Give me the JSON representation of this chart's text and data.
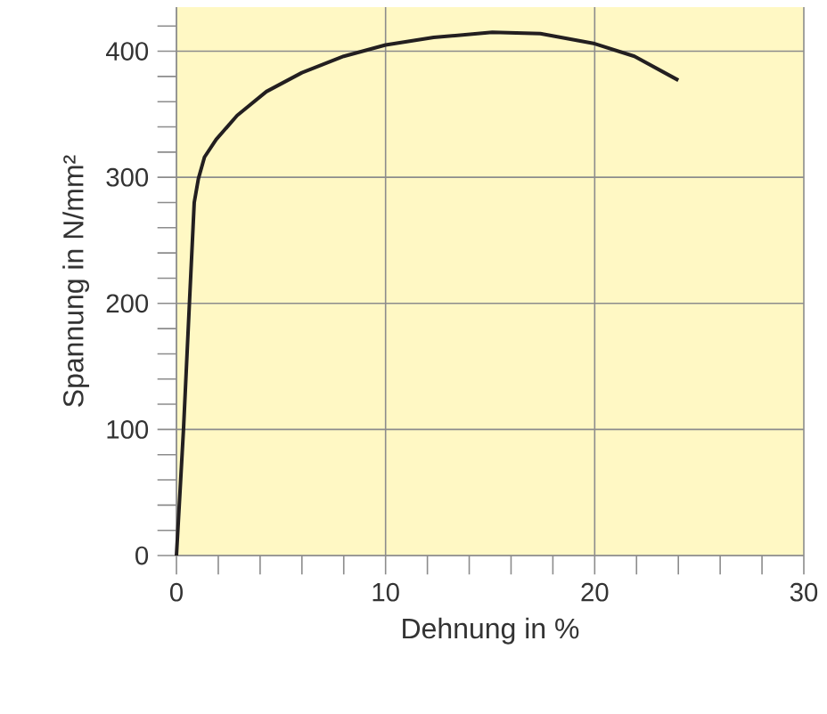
{
  "chart_data": {
    "type": "line",
    "xlabel": "Dehnung in %",
    "ylabel": "Spannung in N/mm²",
    "x": [
      0,
      0.34,
      0.62,
      0.85,
      1.05,
      1.34,
      1.9,
      2.9,
      4.3,
      6.0,
      8.0,
      10,
      12.3,
      15.1,
      17.4,
      20,
      21.9,
      24
    ],
    "series": [
      {
        "color": "#231f20",
        "values": [
          0,
          101,
          200,
          280,
          299,
          316,
          330,
          349,
          368,
          383,
          396,
          405,
          411,
          415,
          414,
          406,
          396,
          377
        ]
      }
    ],
    "xlim": [
      0,
      30
    ],
    "ylim": [
      0,
      435
    ],
    "xticks": [
      0,
      {
        "value": 2,
        "label": null
      },
      {
        "value": 4,
        "label": null
      },
      {
        "value": 6,
        "label": null
      },
      {
        "value": 8,
        "label": null
      },
      10,
      {
        "value": 12,
        "label": null
      },
      {
        "value": 14,
        "label": null
      },
      {
        "value": 16,
        "label": null
      },
      {
        "value": 18,
        "label": null
      },
      20,
      {
        "value": 22,
        "label": null
      },
      {
        "value": 24,
        "label": null
      },
      {
        "value": 26,
        "label": null
      },
      {
        "value": 28,
        "label": null
      },
      30
    ],
    "yticks": [
      0,
      {
        "value": 20,
        "label": null
      },
      {
        "value": 40,
        "label": null
      },
      {
        "value": 60,
        "label": null
      },
      {
        "value": 80,
        "label": null
      },
      100,
      {
        "value": 120,
        "label": null
      },
      {
        "value": 140,
        "label": null
      },
      {
        "value": 160,
        "label": null
      },
      {
        "value": 180,
        "label": null
      },
      200,
      {
        "value": 220,
        "label": null
      },
      {
        "value": 240,
        "label": null
      },
      {
        "value": 260,
        "label": null
      },
      {
        "value": 280,
        "label": null
      },
      300,
      {
        "value": 320,
        "label": null
      },
      {
        "value": 340,
        "label": null
      },
      {
        "value": 360,
        "label": null
      },
      {
        "value": 380,
        "label": null
      },
      400,
      {
        "value": 420,
        "label": null
      }
    ],
    "grid": true,
    "marker": "none",
    "line_style": "solid"
  }
}
